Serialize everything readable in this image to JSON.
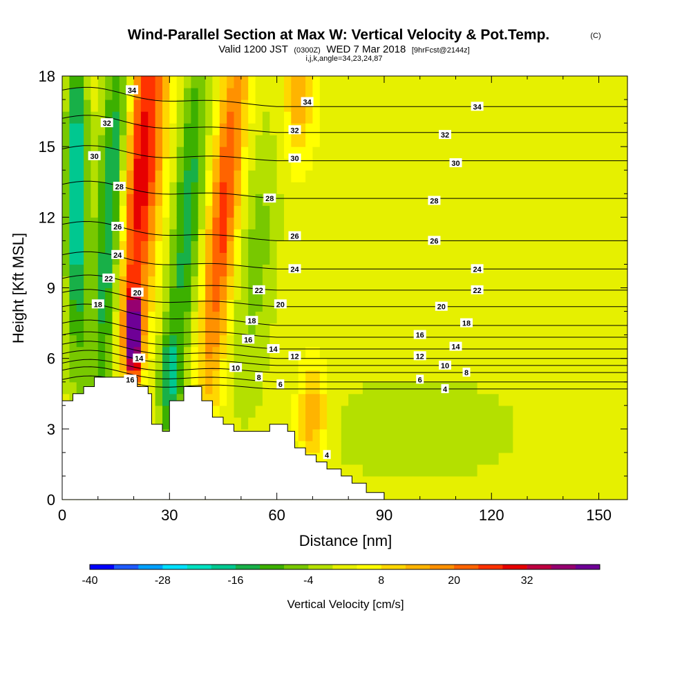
{
  "title": "Wind-Parallel Section at Max W: Vertical Velocity & Pot.Temp.",
  "copyright_mark": "(C)",
  "subtitle_main": "Valid 1200 JST",
  "subtitle_utc": "(0300Z)",
  "subtitle_date": "WED 7 Mar 2018",
  "subtitle_fcst": "[9hrFcst@2144z]",
  "subtitle_params": "i,j,k,angle=34,23,24,87",
  "colors": {
    "palette": [
      "#0000ff",
      "#1e5aff",
      "#00a0ff",
      "#00e0ff",
      "#00e0c0",
      "#00c890",
      "#18b048",
      "#3cb000",
      "#78c800",
      "#b4e000",
      "#e6f000",
      "#ffff00",
      "#ffd700",
      "#ffb400",
      "#ff9100",
      "#ff6400",
      "#ff3200",
      "#e60000",
      "#be0040",
      "#960070",
      "#6e0096"
    ]
  },
  "chart_data": {
    "type": "heatmap",
    "xlabel": "Distance [nm]",
    "ylabel": "Height [Kft MSL]",
    "xlim": [
      0,
      158
    ],
    "ylim": [
      0,
      18
    ],
    "xticks": [
      0,
      30,
      60,
      90,
      120,
      150
    ],
    "yticks": [
      0,
      3,
      6,
      9,
      12,
      15,
      18
    ],
    "colorbar": {
      "label": "Vertical Velocity [cm/s]",
      "min": -40,
      "max": 44,
      "step": 4,
      "tick_labels": [
        "-40",
        "-28",
        "-16",
        "-4",
        "8",
        "20",
        "32"
      ],
      "tick_values": [
        -40,
        -28,
        -16,
        -4,
        8,
        20,
        32
      ]
    },
    "vertical_velocity_features": [
      {
        "x": 22,
        "y": 14,
        "w_cm_s": 30,
        "sigma_x": 4,
        "sigma_y": 6,
        "tilt": 0.5
      },
      {
        "x": 20,
        "y": 7,
        "w_cm_s": 42,
        "sigma_x": 1.5,
        "sigma_y": 1.2,
        "tilt": 0
      },
      {
        "x": 45,
        "y": 12,
        "w_cm_s": 24,
        "sigma_x": 3,
        "sigma_y": 6,
        "tilt": 0.6
      },
      {
        "x": 14,
        "y": 12,
        "w_cm_s": -22,
        "sigma_x": 3,
        "sigma_y": 7,
        "tilt": 0.4
      },
      {
        "x": 4,
        "y": 13,
        "w_cm_s": -24,
        "sigma_x": 2,
        "sigma_y": 5,
        "tilt": 0
      },
      {
        "x": 35,
        "y": 12,
        "w_cm_s": -16,
        "sigma_x": 3,
        "sigma_y": 6,
        "tilt": 0.5
      },
      {
        "x": 54,
        "y": 10,
        "w_cm_s": -8,
        "sigma_x": 4,
        "sigma_y": 4,
        "tilt": 0.5
      },
      {
        "x": 100,
        "y": 3,
        "w_cm_s": -5,
        "sigma_x": 20,
        "sigma_y": 1.6,
        "tilt": 0
      },
      {
        "x": 70,
        "y": 3.5,
        "w_cm_s": 14,
        "sigma_x": 3,
        "sigma_y": 1.5,
        "tilt": 0
      },
      {
        "x": 66,
        "y": 17,
        "w_cm_s": 12,
        "sigma_x": 3,
        "sigma_y": 2,
        "tilt": 0
      },
      {
        "x": 30,
        "y": 5,
        "w_cm_s": -14,
        "sigma_x": 2,
        "sigma_y": 1.5,
        "tilt": 0
      }
    ],
    "terrain": [
      [
        0,
        4.2
      ],
      [
        3,
        4.2
      ],
      [
        3,
        4.5
      ],
      [
        6,
        4.5
      ],
      [
        6,
        4.8
      ],
      [
        9,
        4.8
      ],
      [
        9,
        5.2
      ],
      [
        21,
        5.2
      ],
      [
        21,
        4.8
      ],
      [
        24,
        4.8
      ],
      [
        24,
        4.5
      ],
      [
        25,
        4.5
      ],
      [
        25,
        3.2
      ],
      [
        28,
        3.2
      ],
      [
        28,
        2.9
      ],
      [
        30,
        2.9
      ],
      [
        30,
        4.2
      ],
      [
        34,
        4.2
      ],
      [
        34,
        4.8
      ],
      [
        39,
        4.8
      ],
      [
        39,
        4.2
      ],
      [
        42,
        4.2
      ],
      [
        42,
        3.5
      ],
      [
        45,
        3.5
      ],
      [
        45,
        3.2
      ],
      [
        48,
        3.2
      ],
      [
        48,
        2.9
      ],
      [
        58,
        2.9
      ],
      [
        58,
        3.2
      ],
      [
        63,
        3.2
      ],
      [
        63,
        2.9
      ],
      [
        65,
        2.9
      ],
      [
        65,
        2.2
      ],
      [
        68,
        2.2
      ],
      [
        68,
        1.9
      ],
      [
        71,
        1.9
      ],
      [
        71,
        1.6
      ],
      [
        74,
        1.6
      ],
      [
        74,
        1.3
      ],
      [
        78,
        1.3
      ],
      [
        78,
        1.0
      ],
      [
        81,
        1.0
      ],
      [
        81,
        0.7
      ],
      [
        85,
        0.7
      ],
      [
        85,
        0.3
      ],
      [
        90,
        0.3
      ],
      [
        90,
        0
      ],
      [
        158,
        0
      ]
    ],
    "theta_contours": [
      {
        "label": "34",
        "y_right": 16.7,
        "y_left": 17.4
      },
      {
        "label": "32",
        "y_right": 15.6,
        "y_left": 16.2
      },
      {
        "label": "30",
        "y_right": 14.4,
        "y_left": 14.9
      },
      {
        "label": "28",
        "y_right": 12.8,
        "y_left": 13.4
      },
      {
        "label": "26",
        "y_right": 11.0,
        "y_left": 11.7
      },
      {
        "label": "24",
        "y_right": 9.8,
        "y_left": 10.4
      },
      {
        "label": "22",
        "y_right": 8.9,
        "y_left": 9.4
      },
      {
        "label": "20",
        "y_right": 8.2,
        "y_left": 8.8
      },
      {
        "label": "18",
        "y_right": 7.4,
        "y_left": 8.2
      },
      {
        "label": "16",
        "y_right": 6.9,
        "y_left": 7.5
      },
      {
        "label": "14",
        "y_right": 6.4,
        "y_left": 7.0
      },
      {
        "label": "12",
        "y_right": 6.0,
        "y_left": 6.6
      },
      {
        "label": "10",
        "y_right": 5.7,
        "y_left": 6.2
      },
      {
        "label": "8",
        "y_right": 5.4,
        "y_left": 5.8
      },
      {
        "label": "6",
        "y_right": 5.0,
        "y_left": 5.5
      },
      {
        "label": "4",
        "y_right": 4.7,
        "y_left": 5.1
      }
    ],
    "theta_labels": [
      {
        "text": "34",
        "x": 19.5,
        "y": 17.4
      },
      {
        "text": "34",
        "x": 68.5,
        "y": 16.9
      },
      {
        "text": "34",
        "x": 116,
        "y": 16.7
      },
      {
        "text": "32",
        "x": 12.5,
        "y": 16.0
      },
      {
        "text": "32",
        "x": 65,
        "y": 15.7
      },
      {
        "text": "32",
        "x": 107,
        "y": 15.5
      },
      {
        "text": "30",
        "x": 9,
        "y": 14.6
      },
      {
        "text": "30",
        "x": 65,
        "y": 14.5
      },
      {
        "text": "30",
        "x": 110,
        "y": 14.3
      },
      {
        "text": "28",
        "x": 16,
        "y": 13.3
      },
      {
        "text": "28",
        "x": 58,
        "y": 12.8
      },
      {
        "text": "28",
        "x": 104,
        "y": 12.7
      },
      {
        "text": "26",
        "x": 15.5,
        "y": 11.6
      },
      {
        "text": "26",
        "x": 65,
        "y": 11.2
      },
      {
        "text": "26",
        "x": 104,
        "y": 11.0
      },
      {
        "text": "24",
        "x": 15.5,
        "y": 10.4
      },
      {
        "text": "24",
        "x": 65,
        "y": 9.8
      },
      {
        "text": "24",
        "x": 116,
        "y": 9.8
      },
      {
        "text": "22",
        "x": 13,
        "y": 9.4
      },
      {
        "text": "22",
        "x": 55,
        "y": 8.9
      },
      {
        "text": "22",
        "x": 116,
        "y": 8.9
      },
      {
        "text": "20",
        "x": 21,
        "y": 8.8
      },
      {
        "text": "20",
        "x": 61,
        "y": 8.3
      },
      {
        "text": "20",
        "x": 106,
        "y": 8.2
      },
      {
        "text": "18",
        "x": 10,
        "y": 8.3
      },
      {
        "text": "18",
        "x": 53,
        "y": 7.6
      },
      {
        "text": "18",
        "x": 113,
        "y": 7.5
      },
      {
        "text": "16",
        "x": 52,
        "y": 6.8
      },
      {
        "text": "16",
        "x": 100,
        "y": 7.0
      },
      {
        "text": "14",
        "x": 21.5,
        "y": 6.0
      },
      {
        "text": "14",
        "x": 59,
        "y": 6.4
      },
      {
        "text": "14",
        "x": 110,
        "y": 6.5
      },
      {
        "text": "12",
        "x": 65,
        "y": 6.1
      },
      {
        "text": "12",
        "x": 100,
        "y": 6.1
      },
      {
        "text": "10",
        "x": 48.5,
        "y": 5.6
      },
      {
        "text": "10",
        "x": 107,
        "y": 5.7
      },
      {
        "text": "8",
        "x": 55,
        "y": 5.2
      },
      {
        "text": "8",
        "x": 113,
        "y": 5.4
      },
      {
        "text": "6",
        "x": 61,
        "y": 4.9
      },
      {
        "text": "6",
        "x": 100,
        "y": 5.1
      },
      {
        "text": "4",
        "x": 107,
        "y": 4.7
      },
      {
        "text": "4",
        "x": 74,
        "y": 1.9
      },
      {
        "text": "16",
        "x": 19,
        "y": 5.1
      }
    ]
  }
}
